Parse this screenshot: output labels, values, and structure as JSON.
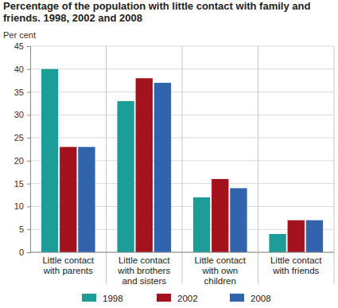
{
  "chart_data": {
    "type": "bar",
    "title": "Percentage of the population with little contact with family and friends. 1998, 2002 and 2008",
    "y_label": "Per cent",
    "categories": [
      "Little contact with parents",
      "Little contact with brothers and sisters",
      "Little contact with own children",
      "Little contact with friends"
    ],
    "series": [
      {
        "name": "1998",
        "color": "#1c9d98",
        "values": [
          40,
          33,
          12,
          4
        ]
      },
      {
        "name": "2002",
        "color": "#a3131e",
        "values": [
          23,
          38,
          16,
          7
        ]
      },
      {
        "name": "2008",
        "color": "#3263ad",
        "values": [
          23,
          37,
          14,
          7
        ]
      }
    ],
    "ylim": [
      0,
      45
    ],
    "yticks": [
      0,
      5,
      10,
      15,
      20,
      25,
      30,
      35,
      40,
      45
    ],
    "grid": true,
    "legend": "bottom"
  }
}
